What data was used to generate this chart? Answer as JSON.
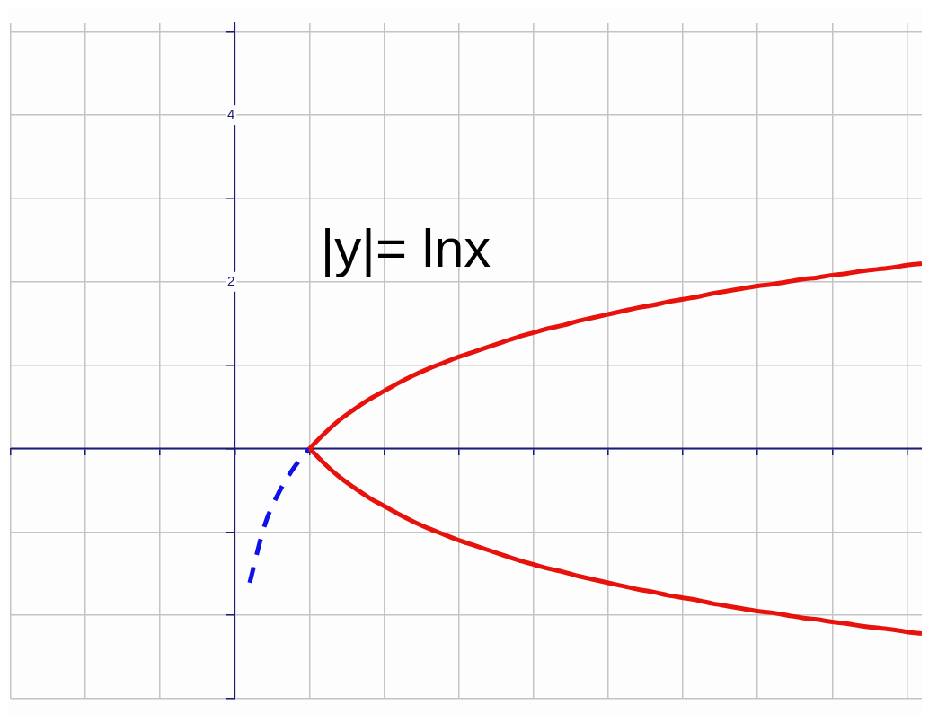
{
  "chart_data": {
    "type": "line",
    "annotations": [
      "|y|= lnx"
    ],
    "categories": [
      null,
      null,
      null,
      null,
      null,
      null,
      null,
      null,
      null,
      null,
      null,
      null,
      null,
      null,
      null,
      null,
      null,
      null,
      null,
      null,
      null,
      null,
      null,
      null,
      null,
      null,
      null,
      null,
      null,
      null,
      null,
      null,
      null,
      null,
      null,
      null,
      null,
      null,
      null,
      null,
      null,
      null,
      null,
      null,
      null,
      null,
      null,
      null,
      null,
      null,
      null,
      null,
      null,
      null,
      null,
      null,
      null,
      null,
      null,
      null,
      null,
      null
    ],
    "series": [
      {
        "color": "#e8120c",
        "line_style": "solid",
        "values": [
          null,
          null,
          null,
          null,
          null,
          null,
          null,
          null,
          null,
          null,
          null,
          null,
          null,
          null,
          null,
          null,
          null,
          null,
          null,
          null,
          0,
          0.18,
          0.34,
          0.47,
          0.59,
          0.69,
          0.79,
          0.88,
          0.96,
          1.03,
          1.1,
          1.16,
          1.22,
          1.28,
          1.34,
          1.39,
          1.44,
          1.48,
          1.53,
          1.57,
          1.61,
          1.65,
          1.69,
          1.72,
          1.76,
          1.79,
          1.82,
          1.86,
          1.89,
          1.92,
          1.95,
          1.97,
          2.0,
          2.03,
          2.05,
          2.08,
          2.1,
          2.13,
          2.15,
          2.17,
          2.2,
          2.22
        ]
      },
      {
        "color": "#e8120c",
        "line_style": "solid",
        "values": [
          null,
          null,
          null,
          null,
          null,
          null,
          null,
          null,
          null,
          null,
          null,
          null,
          null,
          null,
          null,
          null,
          null,
          null,
          null,
          null,
          0,
          -0.18,
          -0.34,
          -0.47,
          -0.59,
          -0.69,
          -0.79,
          -0.88,
          -0.96,
          -1.03,
          -1.1,
          -1.16,
          -1.22,
          -1.28,
          -1.34,
          -1.39,
          -1.44,
          -1.48,
          -1.53,
          -1.57,
          -1.61,
          -1.65,
          -1.69,
          -1.72,
          -1.76,
          -1.79,
          -1.82,
          -1.86,
          -1.89,
          -1.92,
          -1.95,
          -1.97,
          -2.0,
          -2.03,
          -2.05,
          -2.08,
          -2.1,
          -2.13,
          -2.15,
          -2.17,
          -2.2,
          -2.22
        ]
      },
      {
        "color": "#1010e8",
        "line_style": "dashed",
        "values": [
          null,
          null,
          null,
          null,
          null,
          null,
          null,
          null,
          null,
          null,
          null,
          null,
          null,
          null,
          null,
          null,
          -1.61,
          -0.92,
          -0.51,
          -0.22,
          0,
          null,
          null,
          null,
          null,
          null,
          null,
          null,
          null,
          null,
          null,
          null,
          null,
          null,
          null,
          null,
          null,
          null,
          null,
          null,
          null,
          null,
          null,
          null,
          null,
          null,
          null,
          null,
          null,
          null,
          null,
          null,
          null,
          null,
          null,
          null,
          null,
          null,
          null,
          null,
          null,
          null
        ]
      }
    ],
    "ylim": [
      -3,
      5.1
    ],
    "yticks": [
      {
        "value": -3,
        "label": null
      },
      {
        "value": -2,
        "label": null
      },
      {
        "value": -1,
        "label": null
      },
      {
        "value": 0,
        "label": null
      },
      {
        "value": 1,
        "label": null
      },
      2,
      {
        "value": 3,
        "label": null
      },
      4,
      {
        "value": 5,
        "label": null
      }
    ],
    "ref_lines": [
      {
        "axis": "y",
        "value": 0,
        "color": "#1c1c78"
      }
    ],
    "tick_labels": "y",
    "grid": true,
    "marker": "none"
  }
}
